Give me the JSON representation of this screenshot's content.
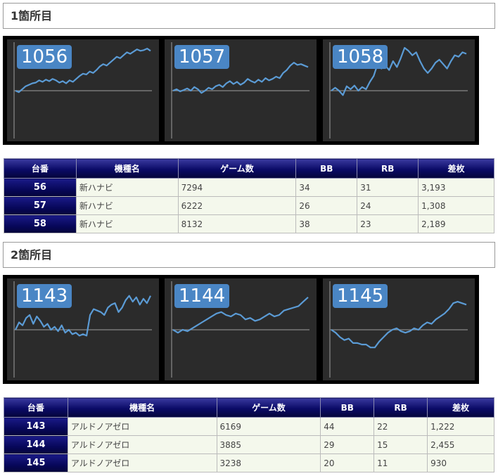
{
  "sections": [
    {
      "title": "1箇所目",
      "charts": [
        {
          "label": "1056",
          "values": [
            0,
            -2,
            2,
            6,
            8,
            10,
            11,
            14,
            12,
            15,
            13,
            16,
            14,
            11,
            13,
            10,
            14,
            12,
            16,
            20,
            23,
            22,
            26,
            24,
            28,
            33,
            36,
            34,
            38,
            42,
            46,
            44,
            48,
            52,
            50,
            53,
            56,
            54,
            55,
            57,
            54
          ]
        },
        {
          "label": "1057",
          "values": [
            0,
            2,
            -1,
            1,
            3,
            0,
            5,
            2,
            -3,
            0,
            4,
            2,
            6,
            8,
            5,
            10,
            13,
            9,
            12,
            8,
            11,
            16,
            13,
            11,
            15,
            12,
            17,
            14,
            16,
            19,
            17,
            24,
            28,
            34,
            38,
            35,
            36,
            34,
            32
          ]
        },
        {
          "label": "1058",
          "values": [
            0,
            4,
            0,
            -6,
            6,
            2,
            7,
            0,
            5,
            2,
            12,
            20,
            36,
            30,
            34,
            28,
            40,
            32,
            44,
            60,
            54,
            48,
            52,
            40,
            30,
            24,
            30,
            38,
            42,
            36,
            30,
            40,
            48,
            46,
            52,
            50
          ]
        }
      ],
      "table": {
        "headers": [
          "台番",
          "機種名",
          "ゲーム数",
          "BB",
          "RB",
          "差枚"
        ],
        "rows": [
          [
            "56",
            "新ハナビ",
            "7294",
            "34",
            "31",
            "3,193"
          ],
          [
            "57",
            "新ハナビ",
            "6222",
            "26",
            "24",
            "1,308"
          ],
          [
            "58",
            "新ハナビ",
            "8132",
            "38",
            "23",
            "2,189"
          ]
        ]
      }
    },
    {
      "title": "2箇所目",
      "charts": [
        {
          "label": "1143",
          "values": [
            0,
            10,
            6,
            16,
            20,
            8,
            18,
            12,
            4,
            8,
            0,
            4,
            -2,
            6,
            -4,
            0,
            -6,
            -4,
            -8,
            -6,
            -8,
            20,
            28,
            26,
            24,
            20,
            30,
            34,
            36,
            24,
            30,
            40,
            46,
            38,
            44,
            34,
            42,
            36,
            46
          ]
        },
        {
          "label": "1144",
          "values": [
            0,
            -4,
            0,
            -2,
            2,
            6,
            10,
            14,
            18,
            22,
            24,
            20,
            18,
            22,
            20,
            14,
            16,
            12,
            14,
            18,
            22,
            18,
            20,
            26,
            28,
            30,
            32,
            38,
            44
          ]
        },
        {
          "label": "1145",
          "values": [
            0,
            -4,
            -10,
            -14,
            -12,
            -18,
            -18,
            -20,
            -20,
            -24,
            -24,
            -16,
            -10,
            -4,
            0,
            2,
            -2,
            -4,
            -2,
            2,
            0,
            6,
            10,
            8,
            14,
            18,
            22,
            28,
            36,
            38,
            36,
            34
          ]
        }
      ],
      "table": {
        "headers": [
          "台番",
          "機種名",
          "ゲーム数",
          "BB",
          "RB",
          "差枚"
        ],
        "rows": [
          [
            "143",
            "アルドノアゼロ",
            "6169",
            "44",
            "22",
            "1,222"
          ],
          [
            "144",
            "アルドノアゼロ",
            "3885",
            "29",
            "15",
            "2,455"
          ],
          [
            "145",
            "アルドノアゼロ",
            "3238",
            "20",
            "11",
            "930"
          ]
        ]
      }
    }
  ],
  "colors": {
    "chart_line": "#5b9bd5",
    "chart_bg": "#2b2b2b",
    "label_bg": "#4a86c5",
    "header_navy": "#0a0a66",
    "cell_bg": "#f4f8ec"
  }
}
